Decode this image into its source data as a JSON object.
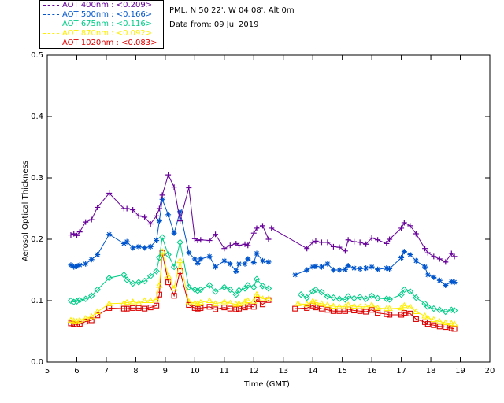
{
  "header": {
    "site": "PML, N 50 22', W 04 08', Alt 0m",
    "date": "Data from: 09 Jul 2019"
  },
  "legend": [
    {
      "label": "AOT  400nm : <0.209>",
      "color": "#660099"
    },
    {
      "label": "AOT  500nm : <0.166>",
      "color": "#0055cc"
    },
    {
      "label": "AOT  675nm : <0.116>",
      "color": "#00cc88"
    },
    {
      "label": "AOT  870nm : <0.092>",
      "color": "#ffee00"
    },
    {
      "label": "AOT 1020nm : <0.083>",
      "color": "#dd0000"
    }
  ],
  "chart_data": {
    "type": "scatter",
    "title": "",
    "xlabel": "Time (GMT)",
    "ylabel": "Aerosol Optical Thickness",
    "xlim": [
      5,
      20
    ],
    "ylim": [
      0.0,
      0.5
    ],
    "xticks": [
      5,
      6,
      7,
      8,
      9,
      10,
      11,
      12,
      13,
      14,
      15,
      16,
      17,
      18,
      19,
      20
    ],
    "yticks": [
      0.0,
      0.1,
      0.2,
      0.3,
      0.4,
      0.5
    ],
    "grid": false,
    "legend_position": "top-left",
    "series": [
      {
        "name": "AOT  400nm : <0.209>",
        "marker": "plus",
        "color": "#660099",
        "x": [
          5.8,
          5.9,
          6.0,
          6.1,
          6.3,
          6.5,
          6.7,
          7.1,
          7.6,
          7.7,
          7.9,
          8.1,
          8.3,
          8.5,
          8.7,
          8.8,
          8.9,
          9.1,
          9.3,
          9.5,
          9.8,
          10.0,
          10.1,
          10.2,
          10.5,
          10.7,
          11.0,
          11.2,
          11.4,
          11.5,
          11.7,
          11.8,
          12.0,
          12.1,
          12.3,
          12.5
        ],
        "y": [
          0.207,
          0.209,
          0.206,
          0.212,
          0.228,
          0.232,
          0.252,
          0.275,
          0.25,
          0.25,
          0.248,
          0.238,
          0.236,
          0.225,
          0.238,
          0.25,
          0.272,
          0.305,
          0.285,
          0.23,
          0.284,
          0.201,
          0.198,
          0.199,
          0.198,
          0.208,
          0.185,
          0.19,
          0.193,
          0.19,
          0.192,
          0.19,
          0.21,
          0.218,
          0.222,
          0.2
        ],
        "x2": [
          12.6,
          13.8,
          14.0,
          14.1,
          14.3,
          14.5,
          14.7,
          14.9,
          15.1,
          15.2,
          15.4,
          15.6,
          15.8,
          16.0,
          16.2,
          16.5,
          16.6,
          17.0,
          17.1,
          17.3,
          17.5,
          17.8,
          17.9,
          18.1,
          18.3,
          18.5,
          18.7,
          18.8
        ],
        "y2": [
          0.218,
          0.185,
          0.195,
          0.197,
          0.195,
          0.195,
          0.188,
          0.187,
          0.181,
          0.199,
          0.196,
          0.195,
          0.192,
          0.202,
          0.199,
          0.193,
          0.2,
          0.218,
          0.227,
          0.222,
          0.209,
          0.185,
          0.178,
          0.172,
          0.168,
          0.163,
          0.177,
          0.172
        ]
      },
      {
        "name": "AOT  500nm : <0.166>",
        "marker": "star",
        "color": "#0055cc",
        "x": [
          5.8,
          5.9,
          6.0,
          6.1,
          6.3,
          6.5,
          6.7,
          7.1,
          7.6,
          7.7,
          7.9,
          8.1,
          8.3,
          8.5,
          8.7,
          8.8,
          8.9,
          9.1,
          9.3,
          9.5,
          9.8,
          10.0,
          10.1,
          10.2,
          10.5,
          10.7,
          11.0,
          11.2,
          11.4,
          11.5,
          11.7,
          11.8,
          12.0,
          12.1,
          12.3,
          12.5
        ],
        "y": [
          0.158,
          0.155,
          0.156,
          0.158,
          0.16,
          0.167,
          0.175,
          0.208,
          0.193,
          0.196,
          0.186,
          0.188,
          0.186,
          0.188,
          0.198,
          0.23,
          0.265,
          0.24,
          0.21,
          0.245,
          0.178,
          0.168,
          0.161,
          0.168,
          0.172,
          0.155,
          0.165,
          0.16,
          0.148,
          0.16,
          0.16,
          0.168,
          0.162,
          0.177,
          0.165,
          0.163
        ],
        "x2": [
          13.4,
          13.8,
          14.0,
          14.1,
          14.3,
          14.5,
          14.7,
          14.9,
          15.1,
          15.2,
          15.4,
          15.6,
          15.8,
          16.0,
          16.2,
          16.5,
          16.6,
          17.0,
          17.1,
          17.3,
          17.5,
          17.8,
          17.9,
          18.1,
          18.3,
          18.5,
          18.7,
          18.8
        ],
        "y2": [
          0.142,
          0.15,
          0.155,
          0.156,
          0.155,
          0.16,
          0.15,
          0.15,
          0.151,
          0.157,
          0.153,
          0.152,
          0.153,
          0.155,
          0.151,
          0.153,
          0.152,
          0.17,
          0.18,
          0.175,
          0.165,
          0.155,
          0.142,
          0.138,
          0.133,
          0.125,
          0.131,
          0.13
        ]
      },
      {
        "name": "AOT  675nm : <0.116>",
        "marker": "diamond",
        "color": "#00cc88",
        "x": [
          5.8,
          5.9,
          6.0,
          6.1,
          6.3,
          6.5,
          6.7,
          7.1,
          7.6,
          7.7,
          7.9,
          8.1,
          8.3,
          8.5,
          8.7,
          8.8,
          8.9,
          9.1,
          9.3,
          9.5,
          9.8,
          10.0,
          10.1,
          10.2,
          10.5,
          10.7,
          11.0,
          11.2,
          11.4,
          11.5,
          11.7,
          11.8,
          12.0,
          12.1,
          12.3,
          12.5
        ],
        "y": [
          0.1,
          0.098,
          0.099,
          0.101,
          0.103,
          0.108,
          0.118,
          0.137,
          0.142,
          0.134,
          0.128,
          0.13,
          0.132,
          0.14,
          0.148,
          0.17,
          0.203,
          0.175,
          0.155,
          0.195,
          0.122,
          0.118,
          0.116,
          0.118,
          0.125,
          0.115,
          0.122,
          0.118,
          0.11,
          0.117,
          0.12,
          0.125,
          0.122,
          0.135,
          0.124,
          0.12
        ],
        "x2": [
          13.6,
          13.8,
          14.0,
          14.1,
          14.3,
          14.5,
          14.7,
          14.9,
          15.1,
          15.2,
          15.4,
          15.6,
          15.8,
          16.0,
          16.2,
          16.5,
          16.6,
          17.0,
          17.1,
          17.3,
          17.5,
          17.8,
          17.9,
          18.1,
          18.3,
          18.5,
          18.7,
          18.8
        ],
        "y2": [
          0.11,
          0.105,
          0.115,
          0.118,
          0.114,
          0.107,
          0.105,
          0.103,
          0.102,
          0.107,
          0.104,
          0.106,
          0.103,
          0.108,
          0.104,
          0.103,
          0.102,
          0.11,
          0.118,
          0.115,
          0.105,
          0.095,
          0.09,
          0.087,
          0.085,
          0.082,
          0.085,
          0.084
        ]
      },
      {
        "name": "AOT  870nm : <0.092>",
        "marker": "triangle",
        "color": "#ffee00",
        "x": [
          5.8,
          5.9,
          6.0,
          6.1,
          6.3,
          6.5,
          6.7,
          7.1,
          7.6,
          7.7,
          7.9,
          8.1,
          8.3,
          8.5,
          8.7,
          8.8,
          8.9,
          9.1,
          9.3,
          9.5,
          9.8,
          10.0,
          10.1,
          10.2,
          10.5,
          10.7,
          11.0,
          11.2,
          11.4,
          11.5,
          11.7,
          11.8,
          12.0,
          12.1,
          12.3,
          12.5
        ],
        "y": [
          0.068,
          0.067,
          0.066,
          0.068,
          0.071,
          0.074,
          0.082,
          0.095,
          0.096,
          0.097,
          0.098,
          0.096,
          0.1,
          0.1,
          0.102,
          0.125,
          0.18,
          0.14,
          0.12,
          0.165,
          0.098,
          0.096,
          0.095,
          0.097,
          0.1,
          0.095,
          0.098,
          0.096,
          0.094,
          0.095,
          0.098,
          0.1,
          0.099,
          0.11,
          0.103,
          0.103
        ],
        "x2": [
          13.5,
          13.8,
          14.0,
          14.1,
          14.3,
          14.5,
          14.7,
          14.9,
          15.1,
          15.2,
          15.4,
          15.6,
          15.8,
          16.0,
          16.2,
          16.5,
          16.6,
          17.0,
          17.1,
          17.3,
          17.5,
          17.8,
          17.9,
          18.1,
          18.3,
          18.5,
          18.7,
          18.8
        ],
        "y2": [
          0.095,
          0.094,
          0.099,
          0.097,
          0.095,
          0.093,
          0.091,
          0.09,
          0.09,
          0.093,
          0.091,
          0.09,
          0.09,
          0.093,
          0.088,
          0.087,
          0.087,
          0.088,
          0.092,
          0.09,
          0.082,
          0.075,
          0.072,
          0.069,
          0.066,
          0.064,
          0.063,
          0.062
        ]
      },
      {
        "name": "AOT 1020nm : <0.083>",
        "marker": "square",
        "color": "#dd0000",
        "x": [
          5.8,
          5.9,
          6.0,
          6.1,
          6.3,
          6.5,
          6.7,
          7.1,
          7.6,
          7.7,
          7.9,
          8.1,
          8.3,
          8.5,
          8.7,
          8.8,
          8.9,
          9.1,
          9.3,
          9.5,
          9.8,
          10.0,
          10.1,
          10.2,
          10.5,
          10.7,
          11.0,
          11.2,
          11.4,
          11.5,
          11.7,
          11.8,
          12.0,
          12.1,
          12.3,
          12.5
        ],
        "y": [
          0.063,
          0.062,
          0.061,
          0.062,
          0.066,
          0.068,
          0.076,
          0.088,
          0.087,
          0.087,
          0.088,
          0.088,
          0.087,
          0.089,
          0.092,
          0.11,
          0.178,
          0.13,
          0.108,
          0.148,
          0.093,
          0.088,
          0.087,
          0.088,
          0.09,
          0.086,
          0.089,
          0.087,
          0.086,
          0.087,
          0.089,
          0.091,
          0.09,
          0.102,
          0.094,
          0.101
        ],
        "x2": [
          13.4,
          13.8,
          14.0,
          14.1,
          14.3,
          14.5,
          14.7,
          14.9,
          15.1,
          15.2,
          15.4,
          15.6,
          15.8,
          16.0,
          16.2,
          16.5,
          16.6,
          17.0,
          17.1,
          17.3,
          17.5,
          17.8,
          17.9,
          18.1,
          18.3,
          18.5,
          18.7,
          18.8
        ],
        "y2": [
          0.087,
          0.088,
          0.092,
          0.089,
          0.087,
          0.085,
          0.083,
          0.083,
          0.083,
          0.086,
          0.084,
          0.083,
          0.082,
          0.085,
          0.08,
          0.078,
          0.077,
          0.077,
          0.08,
          0.079,
          0.07,
          0.065,
          0.062,
          0.06,
          0.058,
          0.057,
          0.055,
          0.054
        ]
      }
    ]
  }
}
